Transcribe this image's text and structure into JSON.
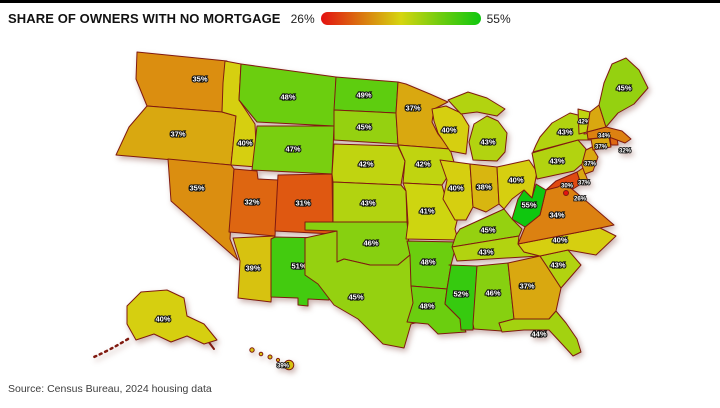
{
  "header": {
    "title": "SHARE OF OWNERS WITH NO MORTGAGE"
  },
  "legend": {
    "min_label": "26%",
    "max_label": "55%",
    "min_color": "#e51212",
    "max_color": "#17c117"
  },
  "source": "Source: Census Bureau, 2024 housing data",
  "chart_data": {
    "type": "choropleth",
    "title": "Share of owners with no mortgage by U.S. state",
    "unit": "%",
    "domain": [
      26,
      55
    ],
    "legend_position": "top",
    "states": [
      {
        "code": "WA",
        "name": "Washington",
        "value": 35,
        "label": "35%"
      },
      {
        "code": "OR",
        "name": "Oregon",
        "value": 37,
        "label": "37%"
      },
      {
        "code": "CA",
        "name": "California",
        "value": 34,
        "label": "34%"
      },
      {
        "code": "NV",
        "name": "Nevada",
        "value": 35,
        "label": "35%"
      },
      {
        "code": "ID",
        "name": "Idaho",
        "value": 40,
        "label": "40%"
      },
      {
        "code": "MT",
        "name": "Montana",
        "value": 48,
        "label": "48%"
      },
      {
        "code": "WY",
        "name": "Wyoming",
        "value": 47,
        "label": "47%"
      },
      {
        "code": "UT",
        "name": "Utah",
        "value": 32,
        "label": "32%"
      },
      {
        "code": "CO",
        "name": "Colorado",
        "value": 31,
        "label": "31%"
      },
      {
        "code": "AZ",
        "name": "Arizona",
        "value": 39,
        "label": "39%"
      },
      {
        "code": "NM",
        "name": "New Mexico",
        "value": 51,
        "label": "51%"
      },
      {
        "code": "ND",
        "name": "North Dakota",
        "value": 49,
        "label": "49%"
      },
      {
        "code": "SD",
        "name": "South Dakota",
        "value": 45,
        "label": "45%"
      },
      {
        "code": "NE",
        "name": "Nebraska",
        "value": 42,
        "label": "42%"
      },
      {
        "code": "KS",
        "name": "Kansas",
        "value": 43,
        "label": "43%"
      },
      {
        "code": "OK",
        "name": "Oklahoma",
        "value": 46,
        "label": "46%"
      },
      {
        "code": "TX",
        "name": "Texas",
        "value": 45,
        "label": "45%"
      },
      {
        "code": "MN",
        "name": "Minnesota",
        "value": 37,
        "label": "37%"
      },
      {
        "code": "IA",
        "name": "Iowa",
        "value": 42,
        "label": "42%"
      },
      {
        "code": "MO",
        "name": "Missouri",
        "value": 41,
        "label": "41%"
      },
      {
        "code": "AR",
        "name": "Arkansas",
        "value": 48,
        "label": "48%"
      },
      {
        "code": "LA",
        "name": "Louisiana",
        "value": 48,
        "label": "48%"
      },
      {
        "code": "WI",
        "name": "Wisconsin",
        "value": 40,
        "label": "40%"
      },
      {
        "code": "IL",
        "name": "Illinois",
        "value": 40,
        "label": "40%"
      },
      {
        "code": "IN",
        "name": "Indiana",
        "value": 38,
        "label": "38%"
      },
      {
        "code": "OH",
        "name": "Ohio",
        "value": 40,
        "label": "40%"
      },
      {
        "code": "MI",
        "name": "Michigan",
        "value": 43,
        "label": "43%"
      },
      {
        "code": "KY",
        "name": "Kentucky",
        "value": 45,
        "label": "45%"
      },
      {
        "code": "TN",
        "name": "Tennessee",
        "value": 43,
        "label": "43%"
      },
      {
        "code": "MS",
        "name": "Mississippi",
        "value": 52,
        "label": "52%"
      },
      {
        "code": "AL",
        "name": "Alabama",
        "value": 46,
        "label": "46%"
      },
      {
        "code": "GA",
        "name": "Georgia",
        "value": 37,
        "label": "37%"
      },
      {
        "code": "FL",
        "name": "Florida",
        "value": 44,
        "label": "44%"
      },
      {
        "code": "SC",
        "name": "South Carolina",
        "value": 43,
        "label": "43%"
      },
      {
        "code": "NC",
        "name": "North Carolina",
        "value": 40,
        "label": "40%"
      },
      {
        "code": "VA",
        "name": "Virginia",
        "value": 34,
        "label": "34%"
      },
      {
        "code": "WV",
        "name": "West Virginia",
        "value": 55,
        "label": "55%"
      },
      {
        "code": "MD",
        "name": "Maryland",
        "value": 30,
        "label": "30%"
      },
      {
        "code": "DE",
        "name": "Delaware",
        "value": 37,
        "label": "37%"
      },
      {
        "code": "DC",
        "name": "District of Columbia",
        "value": 26,
        "label": "26%"
      },
      {
        "code": "NJ",
        "name": "New Jersey",
        "value": 37,
        "label": "37%"
      },
      {
        "code": "PA",
        "name": "Pennsylvania",
        "value": 43,
        "label": "43%"
      },
      {
        "code": "NY",
        "name": "New York",
        "value": 43,
        "label": "43%"
      },
      {
        "code": "CT",
        "name": "Connecticut",
        "value": 37,
        "label": "37%"
      },
      {
        "code": "RI",
        "name": "Rhode Island",
        "value": 32,
        "label": "32%"
      },
      {
        "code": "MA",
        "name": "Massachusetts",
        "value": 34,
        "label": "34%"
      },
      {
        "code": "VT",
        "name": "Vermont",
        "value": 42,
        "label": "42%"
      },
      {
        "code": "NH",
        "name": "New Hampshire",
        "value": 37,
        "label": ""
      },
      {
        "code": "ME",
        "name": "Maine",
        "value": 45,
        "label": "45%"
      },
      {
        "code": "AK",
        "name": "Alaska",
        "value": 40,
        "label": "40%"
      },
      {
        "code": "HI",
        "name": "Hawaii",
        "value": 39,
        "label": "39%"
      }
    ]
  }
}
